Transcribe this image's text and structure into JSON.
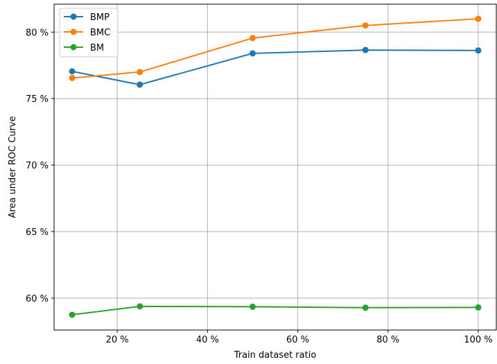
{
  "chart_data": {
    "type": "line",
    "title": "",
    "xlabel": "Train dataset ratio",
    "ylabel": "Area under ROC Curve",
    "xlim": [
      6,
      104
    ],
    "ylim": [
      57.6,
      82.1
    ],
    "x_ticks": [
      {
        "value": 20,
        "label": "20 %"
      },
      {
        "value": 40,
        "label": "40 %"
      },
      {
        "value": 60,
        "label": "60 %"
      },
      {
        "value": 80,
        "label": "80 %"
      },
      {
        "value": 100,
        "label": "100 %"
      }
    ],
    "y_ticks": [
      {
        "value": 60,
        "label": "60 %"
      },
      {
        "value": 65,
        "label": "65 %"
      },
      {
        "value": 70,
        "label": "70 %"
      },
      {
        "value": 75,
        "label": "75 %"
      },
      {
        "value": 80,
        "label": "80 %"
      }
    ],
    "grid": true,
    "legend_position": "top-left",
    "x": [
      10,
      25,
      50,
      75,
      100
    ],
    "series": [
      {
        "name": "BMP",
        "color": "#1f77b4",
        "values": [
          77.05,
          76.05,
          78.4,
          78.65,
          78.62
        ]
      },
      {
        "name": "BMC",
        "color": "#ff7f0e",
        "values": [
          76.55,
          77.0,
          79.55,
          80.5,
          81.0
        ]
      },
      {
        "name": "BM",
        "color": "#2ca02c",
        "values": [
          58.75,
          59.38,
          59.35,
          59.28,
          59.3
        ]
      }
    ]
  }
}
